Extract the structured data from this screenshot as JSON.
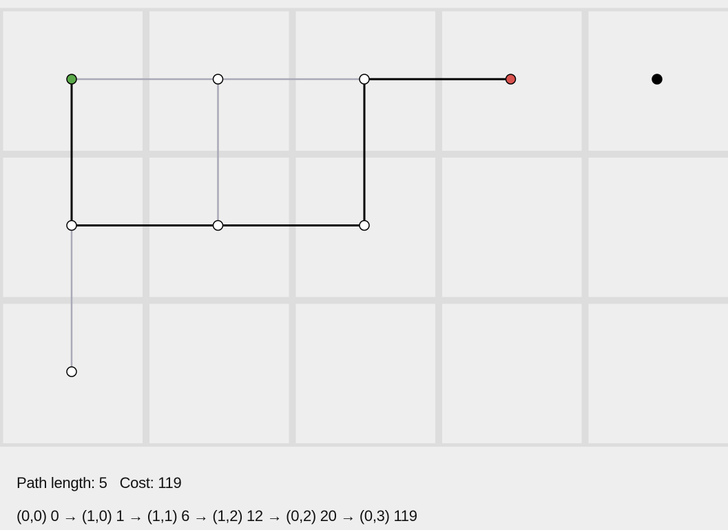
{
  "grid": {
    "columns": 5,
    "rows": 3
  },
  "colors": {
    "background": "#eeeeee",
    "cell_border": "#dddddd",
    "explored_edge": "#a9a9b8",
    "path_edge": "#000000",
    "node_fill": "#ffffff",
    "node_stroke": "#000000",
    "start_node": "#5aa84a",
    "goal_node": "#d9534f",
    "obstacle_node": "#000000"
  },
  "nodes": [
    {
      "id": "n00",
      "col": 0,
      "row": 0,
      "kind": "start"
    },
    {
      "id": "n10",
      "col": 1,
      "row": 0,
      "kind": "visited"
    },
    {
      "id": "n20",
      "col": 2,
      "row": 0,
      "kind": "visited"
    },
    {
      "id": "n30",
      "col": 3,
      "row": 0,
      "kind": "goal"
    },
    {
      "id": "n40",
      "col": 4,
      "row": 0,
      "kind": "blocked"
    },
    {
      "id": "n01",
      "col": 0,
      "row": 1,
      "kind": "visited"
    },
    {
      "id": "n11",
      "col": 1,
      "row": 1,
      "kind": "visited"
    },
    {
      "id": "n21",
      "col": 2,
      "row": 1,
      "kind": "visited"
    },
    {
      "id": "n02",
      "col": 0,
      "row": 2,
      "kind": "visited"
    }
  ],
  "explored_edges": [
    {
      "from": [
        0,
        0
      ],
      "to": [
        1,
        0
      ]
    },
    {
      "from": [
        1,
        0
      ],
      "to": [
        2,
        0
      ]
    },
    {
      "from": [
        1,
        0
      ],
      "to": [
        1,
        1
      ]
    },
    {
      "from": [
        0,
        1
      ],
      "to": [
        0,
        2
      ]
    }
  ],
  "path_edges": [
    {
      "from": [
        0,
        0
      ],
      "to": [
        0,
        1
      ]
    },
    {
      "from": [
        0,
        1
      ],
      "to": [
        1,
        1
      ]
    },
    {
      "from": [
        1,
        1
      ],
      "to": [
        2,
        1
      ]
    },
    {
      "from": [
        2,
        1
      ],
      "to": [
        2,
        0
      ]
    },
    {
      "from": [
        2,
        0
      ],
      "to": [
        3,
        0
      ]
    }
  ],
  "stats": {
    "path_length_label": "Path length: 5",
    "cost_label": "Cost: 119"
  },
  "path_text": "(0,0) 0 → (1,0) 1 → (1,1) 6 → (1,2) 12 → (0,2) 20 → (0,3) 119"
}
